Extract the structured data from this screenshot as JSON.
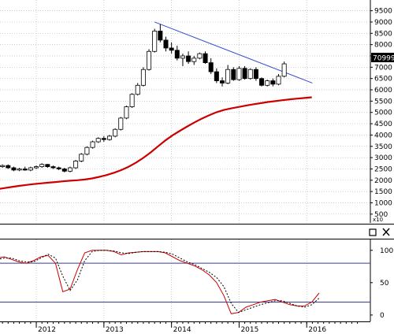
{
  "chart_data": [
    {
      "type": "candlestick",
      "y_ticks": [
        "500",
        "1000",
        "1500",
        "2000",
        "2500",
        "3000",
        "3500",
        "4000",
        "4500",
        "5000",
        "5500",
        "6000",
        "6500",
        "7000",
        "7500",
        "8000",
        "8500",
        "9000",
        "9500"
      ],
      "ylim": [
        250,
        9800
      ],
      "y_scale_label": "x10",
      "last_price_label": "70999",
      "x_tick_labels": [
        "2012",
        "2013",
        "2014",
        "2015",
        "2016"
      ],
      "x_tick_months": [
        7,
        19,
        31,
        43,
        55
      ],
      "series": [
        {
          "kind": "candles",
          "ohlc": [
            [
              2600,
              2700,
              2550,
              2650
            ],
            [
              2650,
              2700,
              2500,
              2550
            ],
            [
              2550,
              2600,
              2400,
              2450
            ],
            [
              2450,
              2550,
              2400,
              2500
            ],
            [
              2500,
              2600,
              2420,
              2450
            ],
            [
              2450,
              2600,
              2400,
              2550
            ],
            [
              2550,
              2650,
              2500,
              2600
            ],
            [
              2600,
              2750,
              2550,
              2700
            ],
            [
              2700,
              2720,
              2550,
              2600
            ],
            [
              2600,
              2650,
              2500,
              2550
            ],
            [
              2550,
              2600,
              2450,
              2500
            ],
            [
              2500,
              2550,
              2350,
              2400
            ],
            [
              2400,
              2600,
              2350,
              2550
            ],
            [
              2550,
              2900,
              2500,
              2850
            ],
            [
              2850,
              3200,
              2800,
              3150
            ],
            [
              3150,
              3500,
              3100,
              3450
            ],
            [
              3450,
              3750,
              3400,
              3700
            ],
            [
              3700,
              3900,
              3650,
              3850
            ],
            [
              3850,
              3950,
              3700,
              3800
            ],
            [
              3800,
              4000,
              3750,
              3950
            ],
            [
              3950,
              4300,
              3900,
              4250
            ],
            [
              4250,
              4800,
              4200,
              4750
            ],
            [
              4750,
              5300,
              4700,
              5250
            ],
            [
              5250,
              5850,
              5200,
              5800
            ],
            [
              5800,
              6300,
              5750,
              6200
            ],
            [
              6200,
              7000,
              6150,
              6900
            ],
            [
              6900,
              7800,
              6850,
              7700
            ],
            [
              7700,
              8700,
              7650,
              8600
            ],
            [
              8600,
              8900,
              8100,
              8200
            ],
            [
              8200,
              8350,
              7700,
              7850
            ],
            [
              7850,
              8100,
              7600,
              7750
            ],
            [
              7750,
              7950,
              7300,
              7400
            ],
            [
              7400,
              7600,
              7050,
              7500
            ],
            [
              7500,
              7700,
              7150,
              7250
            ],
            [
              7250,
              7500,
              7100,
              7400
            ],
            [
              7400,
              7650,
              7350,
              7600
            ],
            [
              7600,
              7700,
              7150,
              7200
            ],
            [
              7200,
              7400,
              6700,
              6800
            ],
            [
              6800,
              6950,
              6300,
              6400
            ],
            [
              6400,
              6550,
              6150,
              6300
            ],
            [
              6300,
              7100,
              6250,
              6900
            ],
            [
              6900,
              7000,
              6400,
              6450
            ],
            [
              6450,
              7050,
              6400,
              6950
            ],
            [
              6950,
              7050,
              6450,
              6500
            ],
            [
              6500,
              6950,
              6450,
              6900
            ],
            [
              6900,
              7000,
              6400,
              6500
            ],
            [
              6500,
              6550,
              6150,
              6200
            ],
            [
              6200,
              6450,
              6150,
              6400
            ],
            [
              6400,
              6500,
              6150,
              6250
            ],
            [
              6250,
              6700,
              6200,
              6600
            ],
            [
              6600,
              7250,
              6550,
              7150
            ]
          ],
          "start_month": 1,
          "up_color": "#ffffff",
          "down_color": "#000000"
        },
        {
          "kind": "moving_average",
          "color": "#cc0000",
          "values": [
            1600,
            1650,
            1700,
            1750,
            1790,
            1830,
            1860,
            1890,
            1920,
            1950,
            1980,
            2000,
            2030,
            2080,
            2150,
            2230,
            2330,
            2450,
            2600,
            2780,
            2990,
            3230,
            3500,
            3760,
            3990,
            4190,
            4380,
            4560,
            4730,
            4880,
            5010,
            5110,
            5180,
            5240,
            5300,
            5360,
            5410,
            5460,
            5500,
            5540,
            5580,
            5610,
            5640,
            5670
          ],
          "start_month": 0,
          "step_months": 1.3
        },
        {
          "kind": "trendline",
          "color": "#3a4fd0",
          "points": [
            [
              28,
              9000
            ],
            [
              56,
              6300
            ]
          ]
        }
      ]
    },
    {
      "type": "line",
      "panel_label": "",
      "y_ticks": [
        "0",
        "50",
        "100"
      ],
      "ylim": [
        -5,
        107
      ],
      "hlines": [
        80,
        20
      ],
      "hline_color": "#3a3a9a",
      "series": [
        {
          "kind": "solid",
          "color": "#cc0000",
          "values": [
            88,
            90,
            86,
            82,
            80,
            84,
            90,
            92,
            80,
            36,
            40,
            70,
            96,
            100,
            100,
            100,
            98,
            93,
            96,
            97,
            98,
            98,
            98,
            96,
            90,
            84,
            80,
            76,
            70,
            62,
            50,
            30,
            2,
            4,
            12,
            16,
            20,
            22,
            24,
            20,
            16,
            14,
            14,
            20,
            34
          ]
        },
        {
          "kind": "dashed",
          "color": "#000000",
          "values": [
            86,
            88,
            88,
            84,
            82,
            82,
            88,
            94,
            88,
            60,
            38,
            54,
            84,
            98,
            100,
            100,
            99,
            96,
            95,
            97,
            98,
            98,
            98,
            97,
            94,
            88,
            82,
            78,
            72,
            66,
            58,
            44,
            18,
            4,
            8,
            12,
            16,
            19,
            22,
            22,
            18,
            14,
            12,
            16,
            26
          ]
        }
      ],
      "step_months": 1.3
    }
  ],
  "controls": {
    "maximize_icon": "square-icon",
    "close_icon": "x-icon"
  }
}
